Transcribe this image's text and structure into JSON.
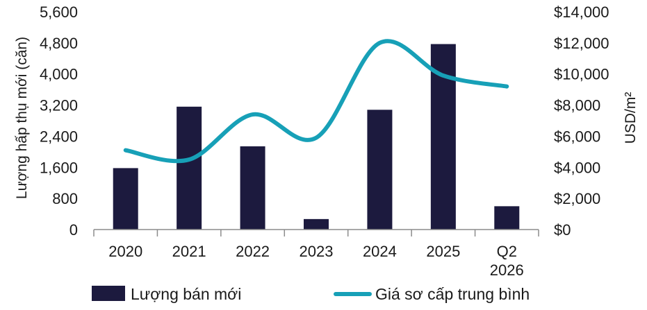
{
  "chart_data": {
    "type": "bar+line",
    "categories": [
      "2020",
      "2021",
      "2022",
      "2023",
      "2024",
      "2025",
      "Q2\n2026"
    ],
    "series": [
      {
        "name": "Lượng bán mới",
        "type": "bar",
        "axis": "left",
        "color": "#1c1a3e",
        "values": [
          1580,
          3160,
          2140,
          270,
          3080,
          4770,
          600
        ]
      },
      {
        "name": "Giá sơ cấp trung bình",
        "type": "line",
        "axis": "right",
        "color": "#17a0b7",
        "values": [
          5100,
          4500,
          7400,
          5900,
          12000,
          9900,
          9200
        ]
      }
    ],
    "ylabel": "Lượng hấp thụ mới (căn)",
    "y2label": "USD/m²",
    "ylim": [
      0,
      5600
    ],
    "y2lim": [
      0,
      14000
    ],
    "yticks": [
      "0",
      "800",
      "1,600",
      "2,400",
      "3,200",
      "4,000",
      "4,800",
      "5,600"
    ],
    "y2ticks": [
      "$0",
      "$2,000",
      "$4,000",
      "$6,000",
      "$8,000",
      "$10,000",
      "$12,000",
      "$14,000"
    ],
    "legend_position": "bottom",
    "grid": false
  }
}
